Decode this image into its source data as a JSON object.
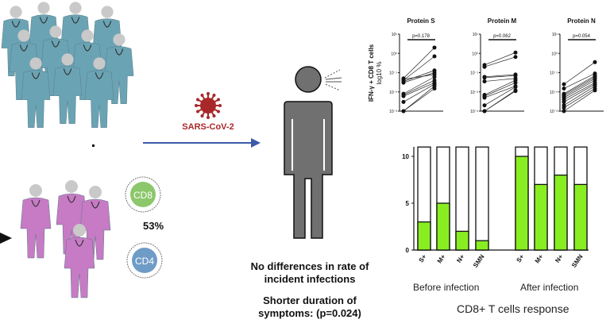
{
  "virus_label": "SARS-CoV-2",
  "cells": {
    "cd8": "CD8",
    "cd4": "CD4",
    "percent": "53%"
  },
  "colors": {
    "teal_scrubs": "#6aa3b4",
    "pink_scrubs": "#c67bc4",
    "virus": "#a8282a",
    "arrow": "#3b5ba8",
    "bar_green": "#88ee22",
    "cd8_fill": "#8cc76b",
    "cd4_fill": "#6f9cc6",
    "person": "#707070"
  },
  "outcomes": {
    "line1": "No differences in rate of",
    "line2": "incident infections",
    "line3": "Shorter duration of",
    "line4": "symptoms: (p=0.024)"
  },
  "dot_plots": {
    "ylabel": "IFN-γ + CD8 T cells",
    "ylabel2": "log10 %",
    "yticks": [
      "10¹",
      "10⁰",
      "10⁻¹",
      "10⁻²",
      "10⁻³"
    ]
  },
  "bar_groups": {
    "before": "Before infection",
    "after": "After infection",
    "title": "CD8+ T cells response"
  },
  "chart_data": [
    {
      "type": "scatter",
      "title": "Protein S",
      "annotation": "p=0.178",
      "y_scale": "log10",
      "ylim": [
        0.001,
        10
      ],
      "paired": [
        [
          0.05,
          2
        ],
        [
          0.04,
          0.7
        ],
        [
          0.035,
          0.13
        ],
        [
          0.03,
          0.1
        ],
        [
          0.008,
          0.06
        ],
        [
          0.007,
          0.04
        ],
        [
          0.006,
          0.03
        ],
        [
          0.003,
          0.025
        ],
        [
          0.001,
          0.02
        ],
        [
          0.001,
          0.015
        ],
        [
          0.045,
          0.08
        ]
      ]
    },
    {
      "type": "scatter",
      "title": "Protein M",
      "annotation": "p=0.062",
      "y_scale": "log10",
      "ylim": [
        0.001,
        10
      ],
      "paired": [
        [
          0.25,
          1.1
        ],
        [
          0.2,
          0.65
        ],
        [
          0.06,
          0.08
        ],
        [
          0.055,
          0.07
        ],
        [
          0.035,
          0.05
        ],
        [
          0.007,
          0.04
        ],
        [
          0.006,
          0.03
        ],
        [
          0.005,
          0.02
        ],
        [
          0.002,
          0.018
        ],
        [
          0.001,
          0.011
        ],
        [
          0.001,
          0.012
        ]
      ]
    },
    {
      "type": "scatter",
      "title": "Protein N",
      "annotation": "p=0.054",
      "y_scale": "log10",
      "ylim": [
        0.001,
        10
      ],
      "paired": [
        [
          0.025,
          0.35
        ],
        [
          0.015,
          0.09
        ],
        [
          0.008,
          0.07
        ],
        [
          0.007,
          0.06
        ],
        [
          0.006,
          0.05
        ],
        [
          0.005,
          0.04
        ],
        [
          0.004,
          0.03
        ],
        [
          0.003,
          0.025
        ],
        [
          0.002,
          0.02
        ],
        [
          0.0015,
          0.015
        ],
        [
          0.001,
          0.012
        ]
      ]
    },
    {
      "type": "bar",
      "stacked": true,
      "categories": [
        "S+",
        "M+",
        "N+",
        "SMN",
        "S+",
        "M+",
        "N+",
        "SMN"
      ],
      "values": [
        3,
        5,
        2,
        1,
        10,
        7,
        8,
        7
      ],
      "total": 11,
      "yticks": [
        0,
        5,
        10
      ],
      "ylim": [
        0,
        11
      ]
    }
  ]
}
